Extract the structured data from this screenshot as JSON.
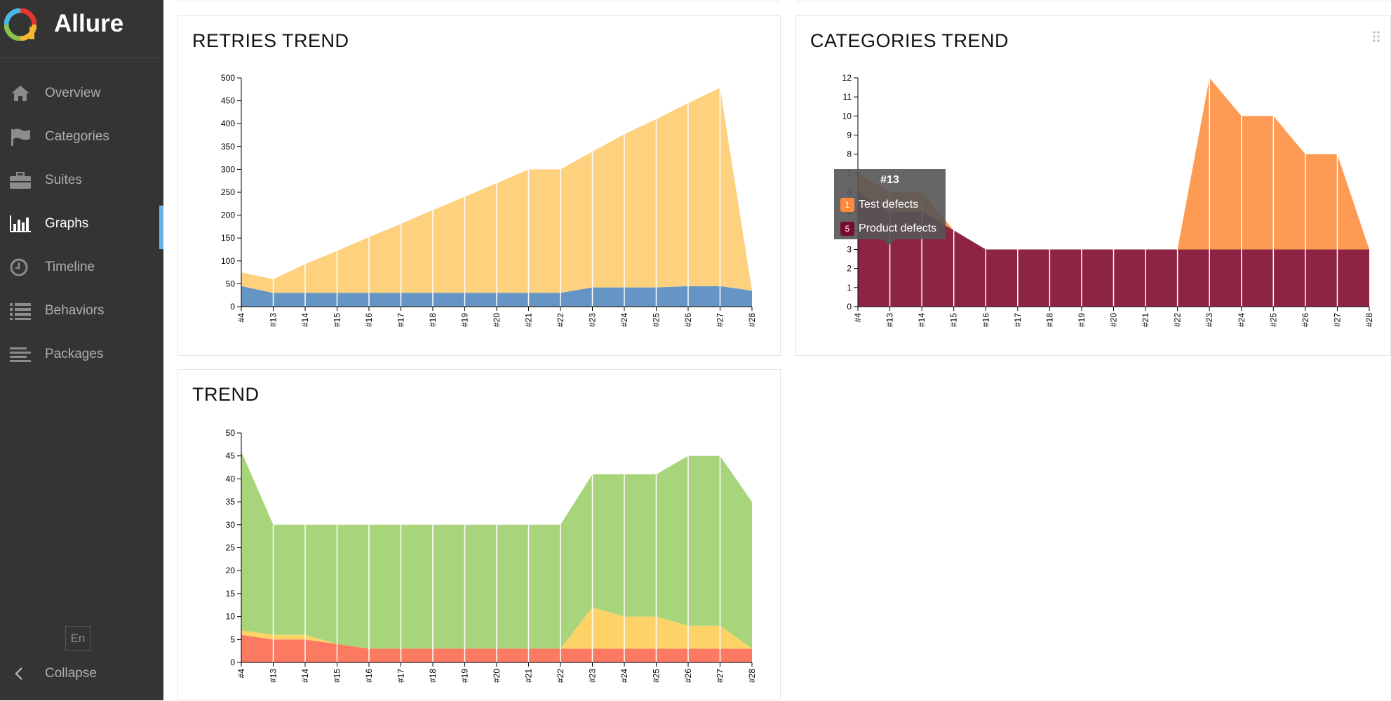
{
  "app": {
    "title": "Allure",
    "language": "En",
    "collapse_label": "Collapse"
  },
  "sidebar": {
    "items": [
      {
        "label": "Overview",
        "icon": "home-icon",
        "active": false
      },
      {
        "label": "Categories",
        "icon": "flag-icon",
        "active": false
      },
      {
        "label": "Suites",
        "icon": "briefcase-icon",
        "active": false
      },
      {
        "label": "Graphs",
        "icon": "bar-chart-icon",
        "active": true
      },
      {
        "label": "Timeline",
        "icon": "clock-icon",
        "active": false
      },
      {
        "label": "Behaviors",
        "icon": "list-icon",
        "active": false
      },
      {
        "label": "Packages",
        "icon": "align-left-icon",
        "active": false
      }
    ]
  },
  "colors": {
    "sidebar_bg": "#343434",
    "active_marker": "#6bb2e6",
    "retries": "#fdd17e",
    "run": "#6495c4",
    "test_defects": "#fd9b54",
    "product_defects": "#8e2444",
    "passed": "#a8d57c",
    "broken": "#fdd367",
    "failed": "#fd7a62"
  },
  "tooltip": {
    "title": "#13",
    "rows": [
      {
        "count": "1",
        "label": "Test defects",
        "color": "#fd8a3c"
      },
      {
        "count": "5",
        "label": "Product defects",
        "color": "#7a0b2c"
      }
    ]
  },
  "chart_data": [
    {
      "id": "retries",
      "type": "area",
      "title": "RETRIES TREND",
      "x": [
        "#4",
        "#13",
        "#14",
        "#15",
        "#16",
        "#17",
        "#18",
        "#19",
        "#20",
        "#21",
        "#22",
        "#23",
        "#24",
        "#25",
        "#26",
        "#27",
        "#28"
      ],
      "ylim": [
        0,
        500
      ],
      "yticks": [
        0,
        50,
        100,
        150,
        200,
        250,
        300,
        350,
        400,
        450,
        500
      ],
      "stacked": true,
      "series": [
        {
          "color": "#6495c4",
          "values": [
            45,
            30,
            30,
            30,
            30,
            30,
            30,
            30,
            30,
            30,
            30,
            42,
            42,
            42,
            45,
            45,
            35
          ]
        },
        {
          "color": "#fdd17e",
          "values": [
            30,
            30,
            63,
            92,
            122,
            151,
            181,
            210,
            240,
            270,
            270,
            297,
            335,
            368,
            400,
            433,
            0
          ]
        }
      ]
    },
    {
      "id": "categories",
      "type": "area",
      "title": "CATEGORIES TREND",
      "x": [
        "#4",
        "#13",
        "#14",
        "#15",
        "#16",
        "#17",
        "#18",
        "#19",
        "#20",
        "#21",
        "#22",
        "#23",
        "#24",
        "#25",
        "#26",
        "#27",
        "#28"
      ],
      "ylim": [
        0,
        12
      ],
      "yticks": [
        0,
        1,
        2,
        3,
        4,
        5,
        6,
        7,
        8,
        9,
        10,
        11,
        12
      ],
      "stacked": true,
      "series": [
        {
          "color": "#8e2444",
          "values": [
            6,
            5,
            5,
            4,
            3,
            3,
            3,
            3,
            3,
            3,
            3,
            3,
            3,
            3,
            3,
            3,
            3
          ]
        },
        {
          "color": "#fd9b54",
          "values": [
            1,
            1,
            1,
            0,
            0,
            0,
            0,
            0,
            0,
            0,
            0,
            9,
            7,
            7,
            5,
            5,
            0
          ]
        }
      ]
    },
    {
      "id": "trend",
      "type": "area",
      "title": "TREND",
      "x": [
        "#4",
        "#13",
        "#14",
        "#15",
        "#16",
        "#17",
        "#18",
        "#19",
        "#20",
        "#21",
        "#22",
        "#23",
        "#24",
        "#25",
        "#26",
        "#27",
        "#28"
      ],
      "ylim": [
        0,
        50
      ],
      "yticks": [
        0,
        5,
        10,
        15,
        20,
        25,
        30,
        35,
        40,
        45,
        50
      ],
      "stacked": true,
      "series": [
        {
          "color": "#fd7a62",
          "values": [
            6,
            5,
            5,
            4,
            3,
            3,
            3,
            3,
            3,
            3,
            3,
            3,
            3,
            3,
            3,
            3,
            3
          ]
        },
        {
          "color": "#fdd367",
          "values": [
            1,
            1,
            1,
            0,
            0,
            0,
            0,
            0,
            0,
            0,
            0,
            9,
            7,
            7,
            5,
            5,
            0
          ]
        },
        {
          "color": "#a8d57c",
          "values": [
            39,
            24,
            24,
            26,
            27,
            27,
            27,
            27,
            27,
            27,
            27,
            29,
            31,
            31,
            37,
            37,
            32
          ]
        }
      ]
    }
  ]
}
